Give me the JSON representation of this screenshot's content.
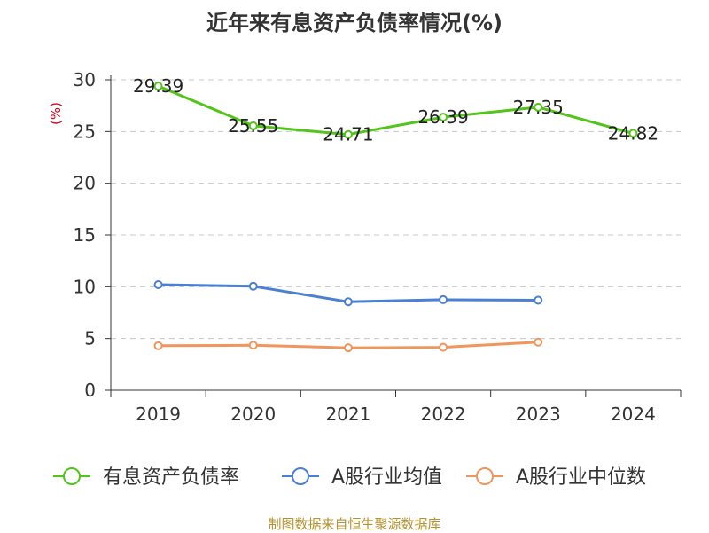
{
  "chart_data": {
    "type": "line",
    "title": "近年来有息资产负债率情况(%)",
    "ylabel": "(%)",
    "categories": [
      "2019",
      "2020",
      "2021",
      "2022",
      "2023",
      "2024"
    ],
    "ylim": [
      0,
      30
    ],
    "yticks": [
      0,
      5,
      10,
      15,
      20,
      25,
      30
    ],
    "grid": true,
    "legend": "bottom",
    "series": [
      {
        "name": "有息资产负债率",
        "color": "#52c41a",
        "values": [
          29.39,
          25.55,
          24.71,
          26.39,
          27.35,
          24.82
        ],
        "labels": [
          "29.39",
          "25.55",
          "24.71",
          "26.39",
          "27.35",
          "24.82"
        ]
      },
      {
        "name": "A股行业均值",
        "color": "#4a7fd4",
        "values": [
          10.2,
          10.05,
          8.55,
          8.75,
          8.7,
          null
        ]
      },
      {
        "name": "A股行业中位数",
        "color": "#f0965d",
        "values": [
          4.3,
          4.35,
          4.1,
          4.15,
          4.65,
          null
        ]
      }
    ]
  },
  "source": "制图数据来自恒生聚源数据库"
}
